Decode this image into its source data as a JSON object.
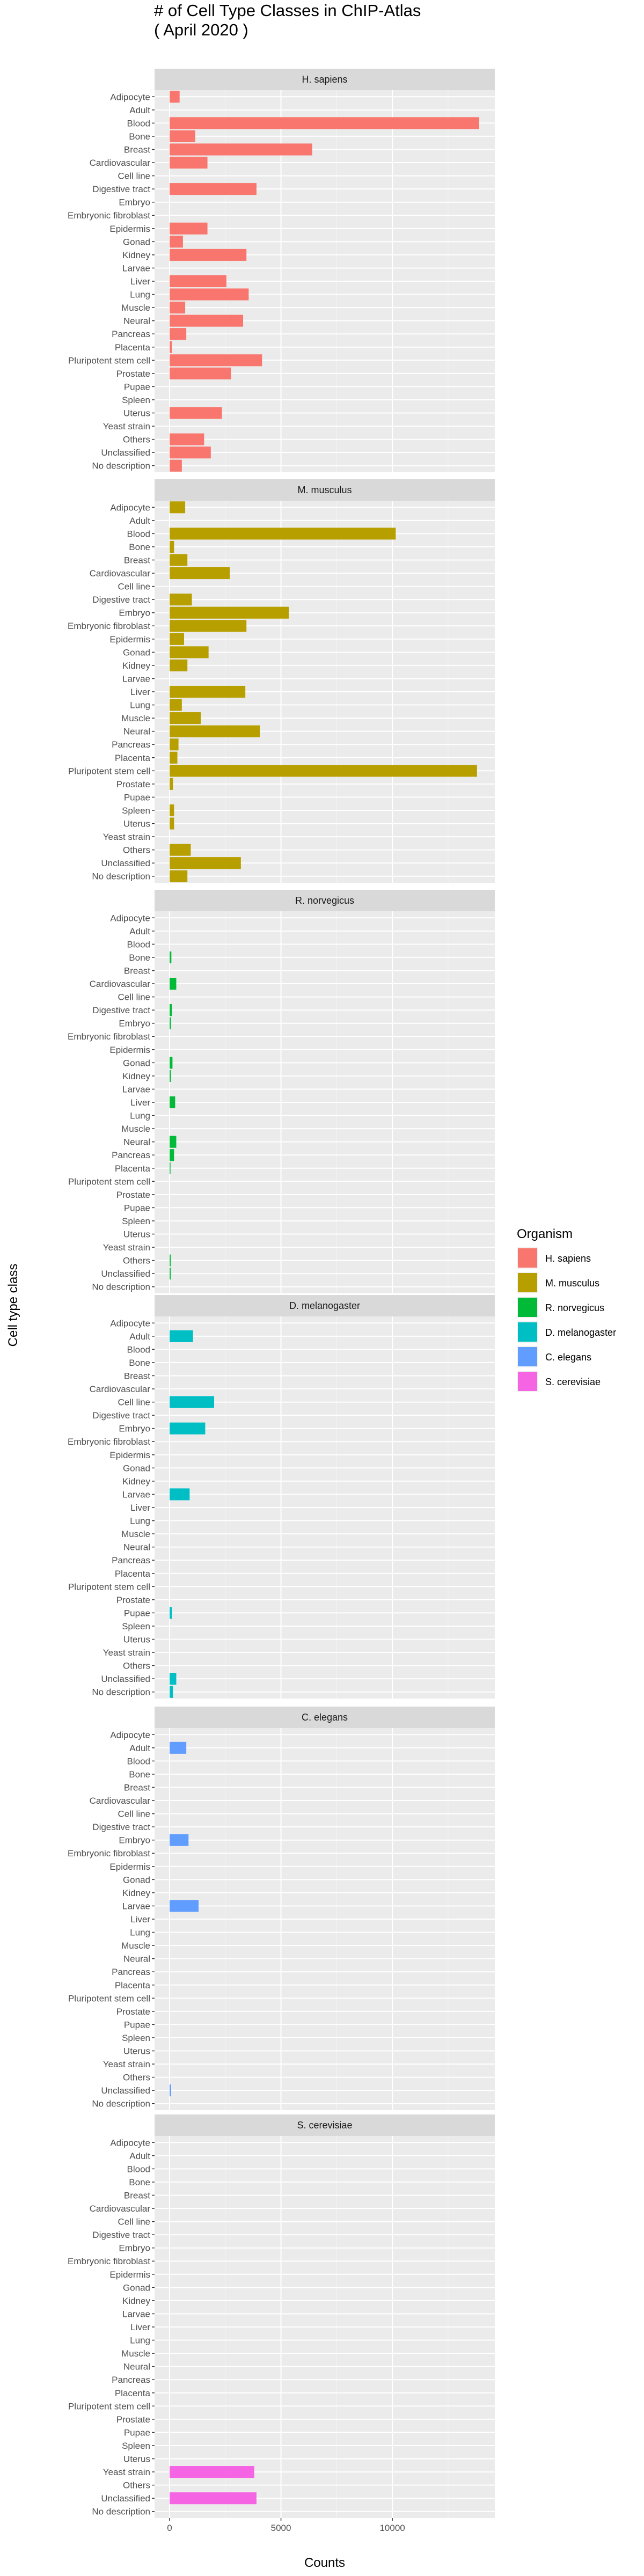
{
  "chart_data": {
    "type": "bar",
    "orientation": "horizontal",
    "facet": "Organism",
    "title_lines": [
      "# of Cell Type Classes in ChIP-Atlas",
      "( April 2020 )"
    ],
    "xlabel": "Counts",
    "ylabel": "Cell type class",
    "xlim": [
      0,
      14000
    ],
    "x_ticks": [
      0,
      5000,
      10000
    ],
    "x_tick_labels": [
      "0",
      "5000",
      "10000"
    ],
    "grid": true,
    "legend_position": "right",
    "legend_title": "Organism",
    "categories": [
      "Adipocyte",
      "Adult",
      "Blood",
      "Bone",
      "Breast",
      "Cardiovascular",
      "Cell line",
      "Digestive tract",
      "Embryo",
      "Embryonic fibroblast",
      "Epidermis",
      "Gonad",
      "Kidney",
      "Larvae",
      "Liver",
      "Lung",
      "Muscle",
      "Neural",
      "Pancreas",
      "Placenta",
      "Pluripotent stem cell",
      "Prostate",
      "Pupae",
      "Spleen",
      "Uterus",
      "Yeast strain",
      "Others",
      "Unclassified",
      "No description"
    ],
    "series": [
      {
        "name": "H. sapiens",
        "color": "#F8766D",
        "values": [
          450,
          0,
          13900,
          1150,
          6400,
          1700,
          0,
          3900,
          0,
          0,
          1700,
          600,
          3450,
          0,
          2550,
          3550,
          700,
          3300,
          750,
          100,
          4150,
          2750,
          0,
          0,
          2350,
          0,
          1550,
          1850,
          550
        ]
      },
      {
        "name": "M. musculus",
        "color": "#B79F00",
        "values": [
          700,
          0,
          10150,
          200,
          800,
          2700,
          0,
          1000,
          5350,
          3450,
          650,
          1750,
          800,
          0,
          3400,
          550,
          1400,
          4050,
          400,
          350,
          13800,
          150,
          0,
          200,
          200,
          0,
          950,
          3200,
          800
        ]
      },
      {
        "name": "R. norvegicus",
        "color": "#00BA38",
        "values": [
          0,
          0,
          0,
          80,
          0,
          300,
          0,
          100,
          60,
          0,
          0,
          130,
          60,
          0,
          250,
          0,
          0,
          300,
          200,
          40,
          0,
          0,
          0,
          0,
          0,
          0,
          50,
          50,
          0
        ]
      },
      {
        "name": "D. melanogaster",
        "color": "#00BFC4",
        "values": [
          0,
          1050,
          0,
          0,
          0,
          0,
          2000,
          0,
          1600,
          0,
          0,
          0,
          0,
          900,
          0,
          0,
          0,
          0,
          0,
          0,
          0,
          0,
          100,
          0,
          0,
          0,
          0,
          300,
          150
        ]
      },
      {
        "name": "C. elegans",
        "color": "#619CFF",
        "values": [
          0,
          750,
          0,
          0,
          0,
          0,
          0,
          0,
          850,
          0,
          0,
          0,
          0,
          1300,
          0,
          0,
          0,
          0,
          0,
          0,
          0,
          0,
          0,
          0,
          0,
          0,
          0,
          70,
          0
        ]
      },
      {
        "name": "S. cerevisiae",
        "color": "#F564E3",
        "values": [
          0,
          0,
          0,
          0,
          0,
          0,
          0,
          0,
          0,
          0,
          0,
          0,
          0,
          0,
          0,
          0,
          0,
          0,
          0,
          0,
          0,
          0,
          0,
          0,
          0,
          3800,
          0,
          3900,
          0
        ]
      }
    ]
  }
}
